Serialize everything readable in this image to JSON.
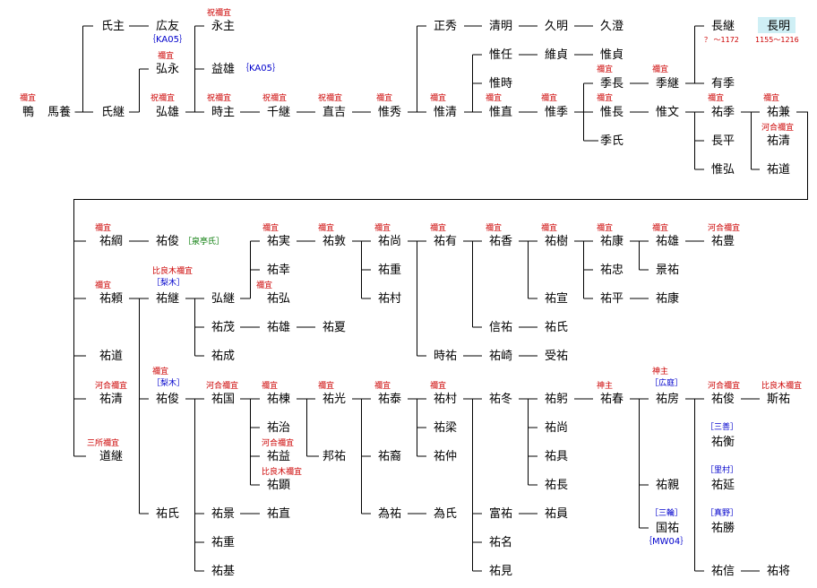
{
  "names": [
    "鴨",
    "馬養",
    "氏主",
    "広友",
    "永主",
    "氏継",
    "弘永",
    "益雄",
    "弘雄",
    "時主",
    "千継",
    "直吉",
    "惟秀",
    "正秀",
    "清明",
    "久明",
    "久澄",
    "惟任",
    "維貞",
    "惟貞",
    "惟時",
    "惟清",
    "惟直",
    "惟季",
    "季長",
    "季継",
    "長継",
    "長明",
    "有季",
    "惟長",
    "惟文",
    "祐季",
    "祐兼",
    "季氏",
    "長平",
    "祐清",
    "惟弘",
    "祐道",
    "祐綱",
    "祐俊",
    "祐実",
    "祐敦",
    "祐尚",
    "祐有",
    "祐香",
    "祐樹",
    "祐康",
    "祐雄",
    "祐豊",
    "祐幸",
    "祐重",
    "祐忠",
    "景祐",
    "祐頼",
    "祐継",
    "弘継",
    "祐弘",
    "祐村",
    "祐宣",
    "祐平",
    "祐康",
    "祐茂",
    "祐雄",
    "祐夏",
    "信祐",
    "祐氏",
    "祐成",
    "祐道",
    "時祐",
    "祐崎",
    "受祐",
    "祐清",
    "祐俊",
    "祐国",
    "祐棟",
    "祐光",
    "祐泰",
    "祐村",
    "祐冬",
    "祐躬",
    "祐春",
    "祐房",
    "祐俊",
    "斯祐",
    "祐治",
    "祐梁",
    "祐尚",
    "祐衡",
    "祐益",
    "邦祐",
    "祐裔",
    "祐仲",
    "祐具",
    "道継",
    "祐顕",
    "祐長",
    "祐親",
    "祐延",
    "祐氏",
    "祐景",
    "祐直",
    "為祐",
    "為氏",
    "富祐",
    "祐員",
    "国祐",
    "祐勝",
    "祐重",
    "祐名",
    "祐基",
    "祐見",
    "祐信",
    "祐将"
  ],
  "titles": [
    "禰宜",
    "祝禰宜",
    "禰宜",
    "祝禰宜",
    "祝禰宜",
    "祝禰宜",
    "祝禰宜",
    "禰宜",
    "禰宜",
    "禰宜",
    "禰宜",
    "禰宜",
    "禰宜",
    "禰宜",
    "禰宜",
    "禰宜",
    "河合禰宜",
    "禰宜",
    "禰宜",
    "禰宜",
    "禰宜",
    "禰宜",
    "禰宜",
    "禰宜",
    "禰宜",
    "禰宜",
    "河合禰宜",
    "禰宜",
    "比良木禰宜",
    "禰宜",
    "河合禰宜",
    "禰宜",
    "河合禰宜",
    "禰宜",
    "禰宜",
    "禰宜",
    "禰宜",
    "神主",
    "神主",
    "河合禰宜",
    "比良木禰宜",
    "河合禰宜",
    "三所禰宜",
    "比良木禰宜"
  ],
  "houses": [
    "梨木",
    "梨木",
    "広庭",
    "三善",
    "里村",
    "三輪",
    "真野"
  ],
  "clan": "泉亭氏",
  "sources": [
    "KA05",
    "KA05",
    "MW04"
  ],
  "dates": [
    "？ ～1172",
    "1155～1216"
  ]
}
